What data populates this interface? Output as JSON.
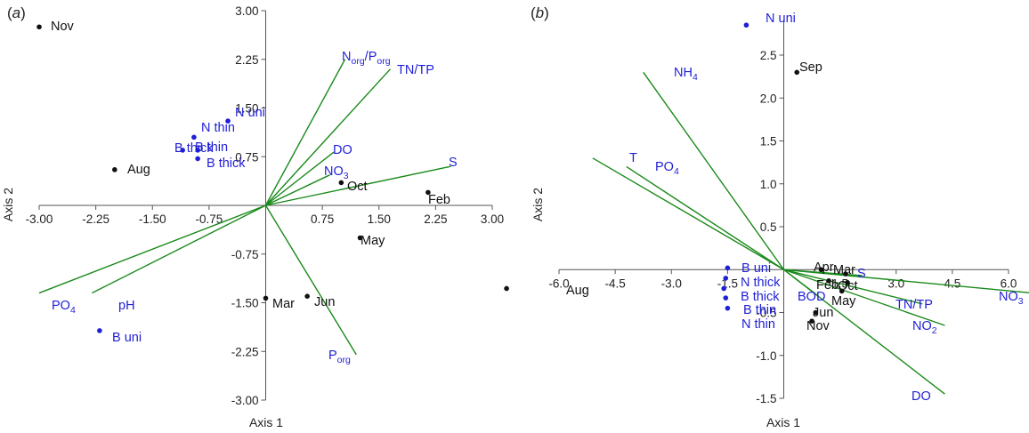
{
  "chart_data": [
    {
      "type": "scatter",
      "panel_label": "(a)",
      "xlabel": "Axis 1",
      "ylabel": "Axis 2",
      "xlim": [
        -3.0,
        3.0
      ],
      "ylim": [
        -3.0,
        3.0
      ],
      "x_ticks": [
        "-3.00",
        "-2.25",
        "-1.50",
        "-0.75",
        "0.75",
        "1.50",
        "2.25",
        "3.00"
      ],
      "y_ticks": [
        "3.00",
        "2.25",
        "1.50",
        "0.75",
        "-0.75",
        "-1.50",
        "-2.25",
        "-3.00"
      ],
      "x_tick_values": [
        -3.0,
        -2.25,
        -1.5,
        -0.75,
        0.75,
        1.5,
        2.25,
        3.0
      ],
      "y_tick_values": [
        3.0,
        2.25,
        1.5,
        0.75,
        -0.75,
        -1.5,
        -2.25,
        -3.0
      ],
      "vector_color": "#1a8a1a",
      "vectors": [
        {
          "label": "N",
          "sub": "org",
          "mid": "/P",
          "sub2": "org",
          "x": 1.05,
          "y": 2.25
        },
        {
          "label": "TN/TP",
          "x": 1.65,
          "y": 2.1
        },
        {
          "label": "DO",
          "x": 0.9,
          "y": 0.82
        },
        {
          "label": "NO",
          "sub": "3",
          "x": 0.85,
          "y": 0.47
        },
        {
          "label": "S",
          "x": 2.45,
          "y": 0.6
        },
        {
          "label": "PO",
          "sub": "4",
          "x": -3.0,
          "y": -1.35
        },
        {
          "label": "pH",
          "x": -2.3,
          "y": -1.35
        },
        {
          "label": "P",
          "sub": "org",
          "x": 1.2,
          "y": -2.3
        }
      ],
      "sites": [
        {
          "label": "Nov",
          "x": -3.0,
          "y": 2.75
        },
        {
          "label": "Aug",
          "x": -2.0,
          "y": 0.55
        },
        {
          "label": "Oct",
          "x": 1.0,
          "y": 0.35
        },
        {
          "label": "Feb",
          "x": 2.15,
          "y": 0.2
        },
        {
          "label": "May",
          "x": 1.25,
          "y": -0.5
        },
        {
          "label": "Mar",
          "x": 0.0,
          "y": -1.43
        },
        {
          "label": "Jun",
          "x": 0.55,
          "y": -1.4
        }
      ],
      "points": [
        {
          "label": "N uni",
          "x": -0.5,
          "y": 1.3
        },
        {
          "label": "N thin",
          "x": -0.95,
          "y": 1.05
        },
        {
          "label": "B thin",
          "x": -0.9,
          "y": 0.85
        },
        {
          "label": "B thick",
          "x": -1.1,
          "y": 0.85
        },
        {
          "label": "B thick",
          "x": -0.9,
          "y": 0.72
        },
        {
          "label": "B uni",
          "x": -2.2,
          "y": -1.93
        }
      ],
      "point_color": "#1f1fd6",
      "site_color": "#111111"
    },
    {
      "type": "scatter",
      "panel_label": "(b)",
      "xlabel": "Axis 1",
      "ylabel": "Axis 2",
      "xlim": [
        -6.0,
        6.0
      ],
      "ylim": [
        -1.5,
        2.9
      ],
      "x_ticks": [
        "-6.0",
        "-4.5",
        "-3.0",
        "-1.5",
        "1.5",
        "3.0",
        "4.5",
        "6.0"
      ],
      "y_ticks": [
        "2.5",
        "2.0",
        "1.5",
        "1.0",
        "0.5",
        "-0.5",
        "-1.0",
        "-1.5"
      ],
      "x_tick_values": [
        -6.0,
        -4.5,
        -3.0,
        -1.5,
        1.5,
        3.0,
        4.5,
        6.0
      ],
      "y_tick_values": [
        2.5,
        2.0,
        1.5,
        1.0,
        0.5,
        -0.5,
        -1.0,
        -1.5
      ],
      "vector_color": "#1a8a1a",
      "vectors": [
        {
          "label": "NH",
          "sub": "4",
          "x": -3.75,
          "y": 2.3
        },
        {
          "label": "T",
          "x": -5.1,
          "y": 1.3
        },
        {
          "label": "PO",
          "sub": "4",
          "x": -4.2,
          "y": 1.2
        },
        {
          "label": "S",
          "x": 2.1,
          "y": -0.07
        },
        {
          "label": "NO",
          "sub": "3",
          "x": 7.3,
          "y": -0.3
        },
        {
          "label": "TN/TP",
          "x": 3.7,
          "y": -0.4
        },
        {
          "label": "NO",
          "sub": "2",
          "x": 4.3,
          "y": -0.65
        },
        {
          "label": "BOD",
          "x": 0.9,
          "y": -0.3
        },
        {
          "label": "DO",
          "x": 4.3,
          "y": -1.45
        }
      ],
      "sites": [
        {
          "label": "Sep",
          "x": 0.35,
          "y": 2.3
        },
        {
          "label": "Aug",
          "x": -7.4,
          "y": -0.22
        },
        {
          "label": "Apr",
          "x": 1.0,
          "y": 0.0
        },
        {
          "label": "Mar",
          "x": 1.65,
          "y": -0.05
        },
        {
          "label": "Feb",
          "x": 1.2,
          "y": -0.13
        },
        {
          "label": "Oct",
          "x": 1.7,
          "y": -0.15
        },
        {
          "label": "May",
          "x": 1.55,
          "y": -0.25
        },
        {
          "label": "Jun",
          "x": 0.85,
          "y": -0.5
        },
        {
          "label": "Nov",
          "x": 0.75,
          "y": -0.6
        }
      ],
      "points": [
        {
          "label": "N uni",
          "x": -1.0,
          "y": 2.85
        },
        {
          "label": "B uni",
          "x": -1.5,
          "y": 0.02
        },
        {
          "label": "N thick",
          "x": -1.55,
          "y": -0.1
        },
        {
          "label": "B thick",
          "x": -1.6,
          "y": -0.22
        },
        {
          "label": "B thin",
          "x": -1.55,
          "y": -0.33
        },
        {
          "label": "N thin",
          "x": -1.5,
          "y": -0.45
        }
      ],
      "point_color": "#1f1fd6",
      "site_color": "#111111"
    }
  ]
}
